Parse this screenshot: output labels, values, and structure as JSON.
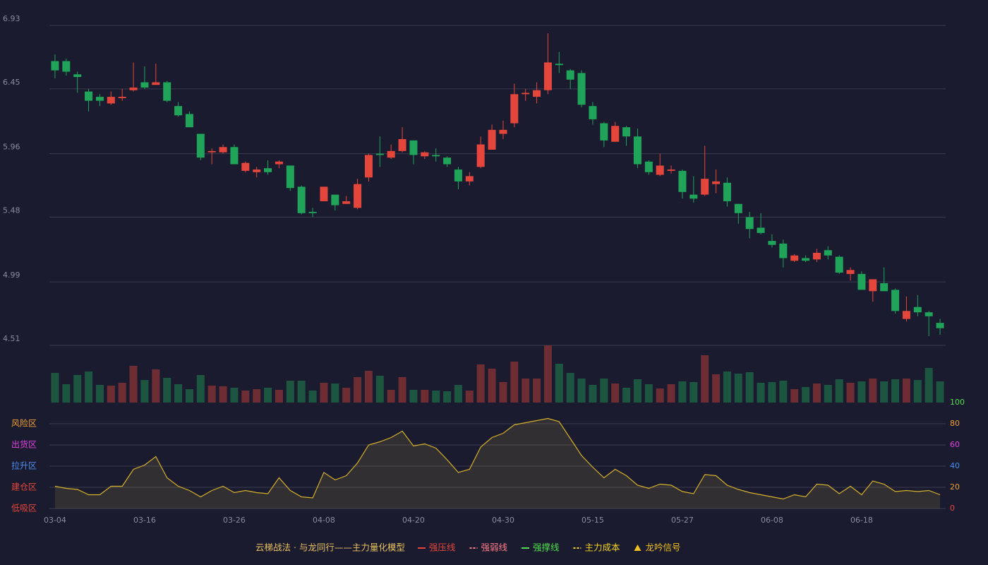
{
  "chart_data": [
    {
      "type": "candlestick",
      "categories": [
        "03-04",
        null,
        null,
        null,
        null,
        null,
        null,
        null,
        "03-16",
        null,
        null,
        null,
        null,
        null,
        null,
        null,
        "03-26",
        null,
        null,
        null,
        null,
        null,
        null,
        null,
        "04-08",
        null,
        null,
        null,
        null,
        null,
        null,
        null,
        "04-20",
        null,
        null,
        null,
        null,
        null,
        null,
        null,
        "04-30",
        null,
        null,
        null,
        null,
        null,
        null,
        null,
        "05-15",
        null,
        null,
        null,
        null,
        null,
        null,
        null,
        "05-27",
        null,
        null,
        null,
        null,
        null,
        null,
        null,
        "06-08",
        null,
        null,
        null,
        null,
        null,
        null,
        null,
        "06-18",
        null,
        null,
        null,
        null,
        null,
        null,
        null
      ],
      "open": [
        6.66,
        6.66,
        6.56,
        6.43,
        6.39,
        6.34,
        6.38,
        6.44,
        6.5,
        6.48,
        6.5,
        6.32,
        6.26,
        6.11,
        5.97,
        5.97,
        6.01,
        5.83,
        5.82,
        5.85,
        5.88,
        5.87,
        5.71,
        5.52,
        5.6,
        5.65,
        5.58,
        5.55,
        5.78,
        5.96,
        5.93,
        5.98,
        6.06,
        5.94,
        5.95,
        5.93,
        5.84,
        5.75,
        5.86,
        5.99,
        6.11,
        6.19,
        6.41,
        6.39,
        6.44,
        6.64,
        6.59,
        6.57,
        6.32,
        6.19,
        6.05,
        6.16,
        6.09,
        5.9,
        5.8,
        5.83,
        5.83,
        5.65,
        5.65,
        5.73,
        5.74,
        5.58,
        5.48,
        5.4,
        5.3,
        5.28,
        5.15,
        5.17,
        5.16,
        5.23,
        5.18,
        5.05,
        5.05,
        4.92,
        4.98,
        4.93,
        4.71,
        4.8,
        4.76,
        4.68
      ],
      "high": [
        6.71,
        6.68,
        6.58,
        6.45,
        6.41,
        6.43,
        6.45,
        6.65,
        6.62,
        6.64,
        6.51,
        6.35,
        6.28,
        6.11,
        6.0,
        6.03,
        6.03,
        5.9,
        5.86,
        5.91,
        5.91,
        5.87,
        5.72,
        5.55,
        5.71,
        5.65,
        5.64,
        5.77,
        5.96,
        6.09,
        6.03,
        6.16,
        6.06,
        5.98,
        6.0,
        5.94,
        5.86,
        5.82,
        6.09,
        6.18,
        6.21,
        6.49,
        6.45,
        6.5,
        6.87,
        6.73,
        6.6,
        6.59,
        6.35,
        6.2,
        6.2,
        6.17,
        6.15,
        5.91,
        5.96,
        5.87,
        5.84,
        5.79,
        6.02,
        5.84,
        5.78,
        5.58,
        5.52,
        5.51,
        5.35,
        5.31,
        5.2,
        5.19,
        5.24,
        5.26,
        5.19,
        5.1,
        5.07,
        5.01,
        5.1,
        4.94,
        4.88,
        4.89,
        4.77,
        4.71
      ],
      "low": [
        6.53,
        6.55,
        6.42,
        6.28,
        6.32,
        6.33,
        6.36,
        6.43,
        6.45,
        6.48,
        6.35,
        6.24,
        6.16,
        5.91,
        5.88,
        5.96,
        5.88,
        5.82,
        5.78,
        5.8,
        5.85,
        5.68,
        5.5,
        5.48,
        5.6,
        5.53,
        5.58,
        5.54,
        5.75,
        5.86,
        5.92,
        5.97,
        5.88,
        5.92,
        5.9,
        5.86,
        5.69,
        5.72,
        5.85,
        5.99,
        6.07,
        6.16,
        6.36,
        6.34,
        6.41,
        6.57,
        6.45,
        6.31,
        6.18,
        6.01,
        6.05,
        6.02,
        5.85,
        5.8,
        5.79,
        5.81,
        5.62,
        5.59,
        5.64,
        5.66,
        5.56,
        5.43,
        5.32,
        5.35,
        5.25,
        5.1,
        5.14,
        5.14,
        5.14,
        5.16,
        5.05,
        5.0,
        4.93,
        4.84,
        4.92,
        4.75,
        4.69,
        4.73,
        4.58,
        4.59
      ],
      "close": [
        6.59,
        6.58,
        6.54,
        6.36,
        6.36,
        6.39,
        6.39,
        6.46,
        6.46,
        6.5,
        6.36,
        6.25,
        6.16,
        5.93,
        5.98,
        6.01,
        5.88,
        5.89,
        5.84,
        5.82,
        5.9,
        5.7,
        5.51,
        5.51,
        5.71,
        5.57,
        5.6,
        5.73,
        5.95,
        5.95,
        5.98,
        6.07,
        5.95,
        5.97,
        5.94,
        5.88,
        5.75,
        5.79,
        6.03,
        6.14,
        6.14,
        6.41,
        6.42,
        6.44,
        6.65,
        6.63,
        6.52,
        6.33,
        6.22,
        6.06,
        6.17,
        6.09,
        5.88,
        5.82,
        5.87,
        5.84,
        5.67,
        5.62,
        5.77,
        5.75,
        5.6,
        5.51,
        5.39,
        5.36,
        5.27,
        5.17,
        5.19,
        5.15,
        5.21,
        5.19,
        5.06,
        5.08,
        4.93,
        5.01,
        4.92,
        4.77,
        4.77,
        4.76,
        4.73,
        4.64
      ],
      "up_color": "#e5463c",
      "down_color": "#1fa45a",
      "ylim": [
        4.51,
        6.93
      ],
      "yticks": [
        4.51,
        4.99,
        5.48,
        5.96,
        6.45,
        6.93
      ],
      "grid": true
    },
    {
      "type": "bar",
      "values": [
        42,
        26,
        39,
        44,
        25,
        24,
        28,
        52,
        32,
        47,
        35,
        26,
        19,
        39,
        24,
        23,
        21,
        17,
        19,
        21,
        18,
        31,
        31,
        17,
        28,
        27,
        21,
        36,
        45,
        38,
        18,
        36,
        18,
        18,
        17,
        16,
        25,
        17,
        54,
        48,
        29,
        58,
        34,
        34,
        81,
        55,
        42,
        34,
        25,
        34,
        27,
        21,
        33,
        26,
        20,
        26,
        30,
        29,
        67,
        40,
        44,
        41,
        43,
        28,
        29,
        31,
        19,
        22,
        27,
        25,
        33,
        28,
        30,
        34,
        30,
        33,
        34,
        32,
        49,
        30
      ],
      "up_color": "#6e2c33",
      "down_color": "#1d5640",
      "ylim": [
        0,
        81
      ]
    },
    {
      "type": "area",
      "values": [
        21,
        19,
        18,
        13,
        13,
        21,
        21,
        37,
        41,
        49,
        29,
        21,
        17,
        11,
        17,
        21,
        15,
        17,
        15,
        14,
        29,
        17,
        11,
        10,
        34,
        27,
        31,
        43,
        60,
        63,
        67,
        73,
        59,
        61,
        57,
        46,
        34,
        37,
        58,
        67,
        71,
        79,
        81,
        83,
        85,
        82,
        66,
        50,
        39,
        29,
        37,
        31,
        22,
        19,
        23,
        22,
        16,
        14,
        32,
        31,
        22,
        18,
        15,
        13,
        11,
        9,
        13,
        11,
        23,
        22,
        14,
        21,
        13,
        26,
        23,
        16,
        17,
        16,
        17,
        13
      ],
      "color": "#d4b02a",
      "ylim": [
        0,
        100
      ],
      "yticks": [
        0,
        20,
        40,
        60,
        80,
        100
      ],
      "ytick_colors": [
        "#e5463c",
        "#f0a030",
        "#4a8cf0",
        "#e040e0",
        "#f0a030",
        "#4ce04c"
      ],
      "zones": [
        {
          "label": "风险区",
          "value": 80,
          "color": "#f0a030"
        },
        {
          "label": "出货区",
          "value": 60,
          "color": "#e040e0"
        },
        {
          "label": "拉升区",
          "value": 40,
          "color": "#4a8cf0"
        },
        {
          "label": "建仓区",
          "value": 20,
          "color": "#e5463c"
        },
        {
          "label": "低吸区",
          "value": 0,
          "color": "#e5463c"
        }
      ],
      "grid": true
    }
  ],
  "legend": {
    "title": "云梯战法 · 与龙同行——主力量化模型",
    "items": [
      {
        "name": "强压线",
        "color": "#e5463c",
        "style": "solid"
      },
      {
        "name": "强弱线",
        "color": "#ff7b8a",
        "style": "dashed"
      },
      {
        "name": "强撑线",
        "color": "#4ce04c",
        "style": "solid"
      },
      {
        "name": "主力成本",
        "color": "#f0d020",
        "style": "dashed"
      },
      {
        "name": "龙吟信号",
        "color": "#f0c020",
        "style": "triangle"
      }
    ]
  }
}
